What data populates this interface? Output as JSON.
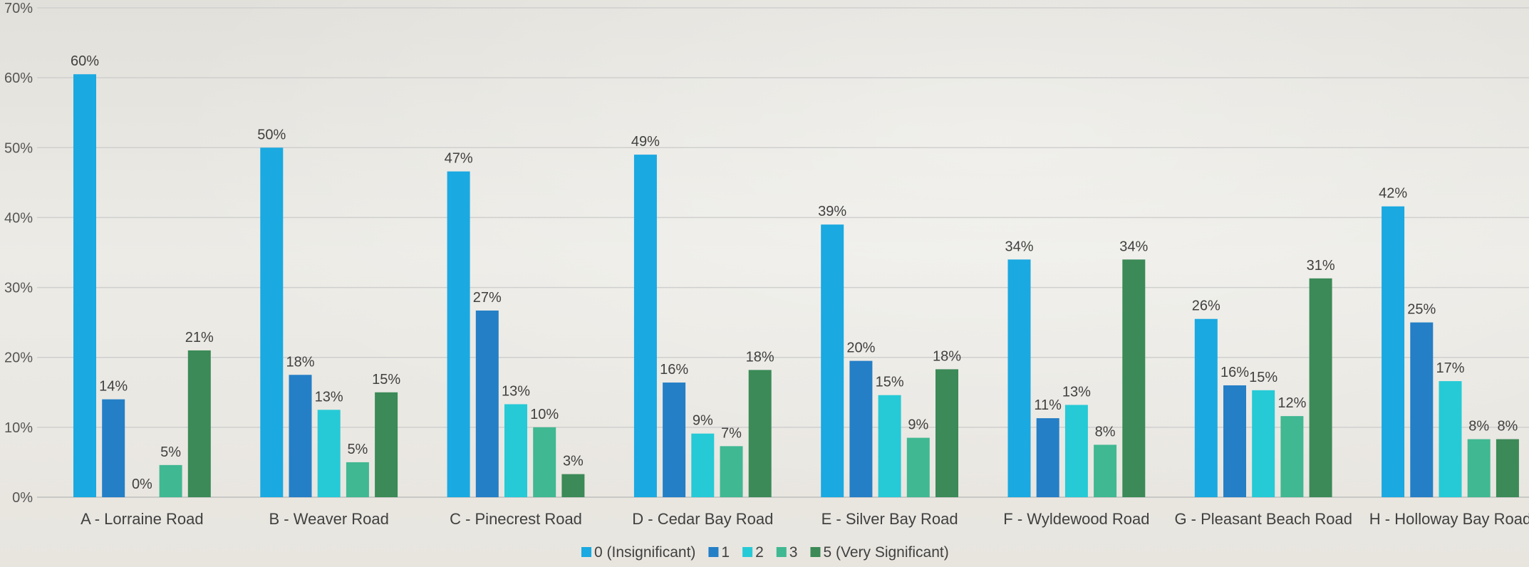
{
  "chart_data": {
    "type": "bar",
    "categories": [
      "A - Lorraine Road",
      "B - Weaver Road",
      "C - Pinecrest Road",
      "D - Cedar Bay Road",
      "E - Silver Bay Road",
      "F - Wyldewood Road",
      "G - Pleasant Beach Road",
      "H - Holloway Bay Road"
    ],
    "series": [
      {
        "name": "0 (Insignificant)",
        "color": "#1aa9e1",
        "values": [
          60.5,
          50,
          46.6,
          49,
          39,
          34,
          25.5,
          41.6
        ],
        "labels": [
          "60%",
          "50%",
          "47%",
          "49%",
          "39%",
          "34%",
          "26%",
          "42%"
        ]
      },
      {
        "name": "1",
        "color": "#247fc6",
        "values": [
          14,
          17.5,
          26.7,
          16.4,
          19.5,
          11.3,
          16,
          25
        ],
        "labels": [
          "14%",
          "18%",
          "27%",
          "16%",
          "20%",
          "11%",
          "16%",
          "25%"
        ]
      },
      {
        "name": "2",
        "color": "#25cad6",
        "values": [
          0,
          12.5,
          13.3,
          9.1,
          14.6,
          13.2,
          15.3,
          16.6
        ],
        "labels": [
          "0%",
          "13%",
          "13%",
          "9%",
          "15%",
          "13%",
          "15%",
          "17%"
        ]
      },
      {
        "name": "3",
        "color": "#40b892",
        "values": [
          4.6,
          5,
          10,
          7.3,
          8.5,
          7.5,
          11.6,
          8.3
        ],
        "labels": [
          "5%",
          "5%",
          "10%",
          "7%",
          "9%",
          "8%",
          "12%",
          "8%"
        ]
      },
      {
        "name": "5 (Very Significant)",
        "color": "#3b8a57",
        "values": [
          21,
          15,
          3.3,
          18.2,
          18.3,
          34,
          31.3,
          8.3
        ],
        "labels": [
          "21%",
          "15%",
          "3%",
          "18%",
          "18%",
          "34%",
          "31%",
          "8%"
        ]
      }
    ],
    "yticks": [
      "0%",
      "10%",
      "20%",
      "30%",
      "40%",
      "50%",
      "60%",
      "70%"
    ],
    "ylim": [
      0,
      70
    ],
    "grid": true,
    "legend_position": "bottom-center",
    "gridline_color": "#cfcfcf"
  }
}
